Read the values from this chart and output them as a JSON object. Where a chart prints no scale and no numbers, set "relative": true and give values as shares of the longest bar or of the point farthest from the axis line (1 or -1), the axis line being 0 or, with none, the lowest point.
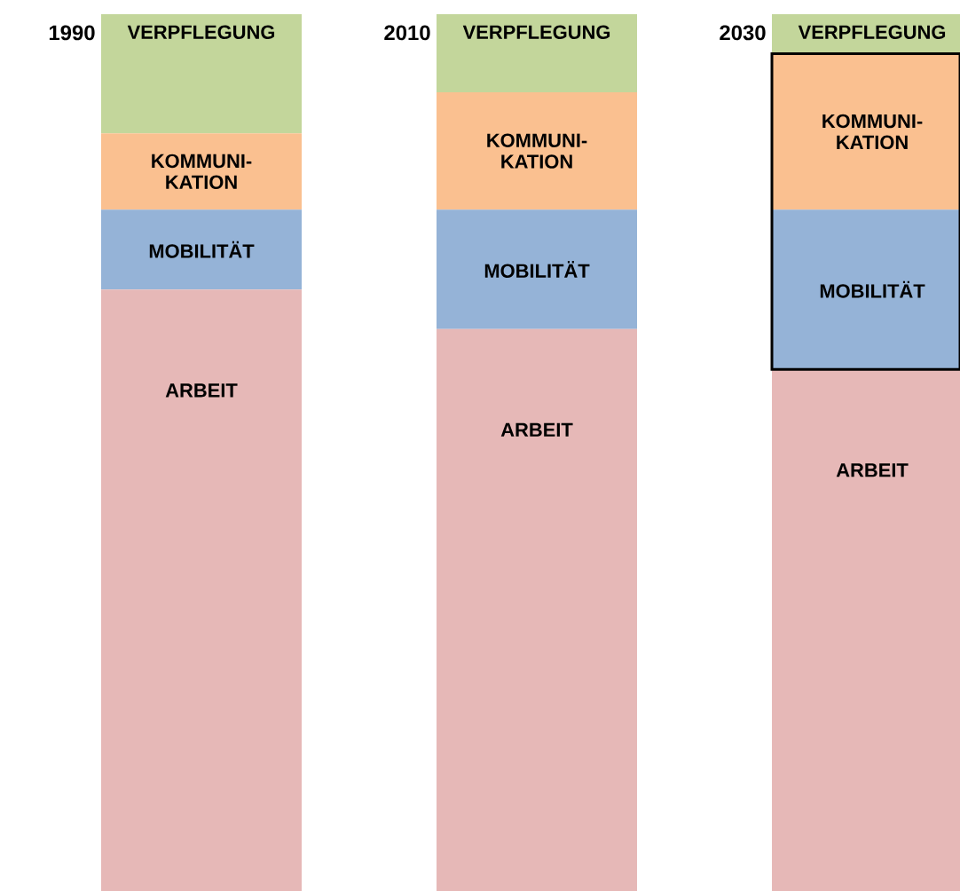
{
  "chart_data": {
    "type": "bar",
    "stacked": true,
    "relative": true,
    "categories": [
      "1990",
      "2010",
      "2030"
    ],
    "series": [
      {
        "name": "ARBEIT",
        "color": "#e6b8b7",
        "values": [
          0.686,
          0.641,
          0.595
        ]
      },
      {
        "name": "MOBILITÄT",
        "color": "#95b3d7",
        "values": [
          0.091,
          0.136,
          0.182
        ]
      },
      {
        "name": "KOMMUNI-KATION",
        "color": "#fac090",
        "values": [
          0.087,
          0.134,
          0.178
        ]
      },
      {
        "name": "VERPFLEGUNG",
        "color": "#c3d69b",
        "values": [
          0.136,
          0.089,
          0.045
        ]
      }
    ]
  }
}
